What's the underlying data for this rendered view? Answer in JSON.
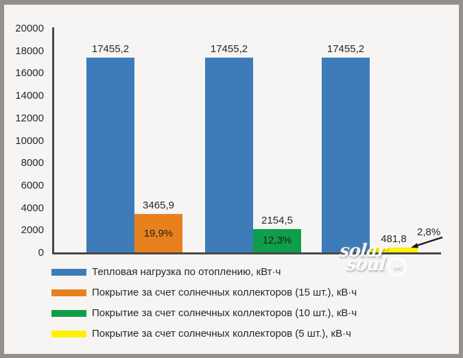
{
  "frame": {
    "background": "#f6f5f3",
    "border_color": "#94908c"
  },
  "chart_data": {
    "type": "bar",
    "title": "",
    "xlabel": "",
    "ylabel": "",
    "ylim": [
      0,
      20000
    ],
    "ytick_step": 2000,
    "yticks": [
      20000,
      18000,
      16000,
      14000,
      12000,
      10000,
      8000,
      6000,
      4000,
      2000,
      0
    ],
    "grid": false,
    "legend_position": "bottom-left",
    "axis_color": "#474747",
    "text_color": "#262626",
    "series": [
      {
        "name": "Тепловая нагрузка по отоплению, кВт·ч",
        "color": "#3d7cb8"
      },
      {
        "name": "Покрытие за счет солнечных коллекторов (15 шт.), кВ·ч",
        "color": "#e8811d"
      },
      {
        "name": "Покрытие за счет солнечных коллекторов (10 шт.), кВ·ч",
        "color": "#0f9f4b"
      },
      {
        "name": "Покрытие за счет солнечных коллекторов (5 шт.), кВ·ч",
        "color": "#fff100"
      }
    ],
    "groups": [
      {
        "bars": [
          {
            "series": 0,
            "value": 17455.2,
            "value_label": "17455,2"
          },
          {
            "series": 1,
            "value": 3465.9,
            "value_label": "3465,9",
            "percent_label": "19,9%",
            "percent_placement": "inside"
          }
        ]
      },
      {
        "bars": [
          {
            "series": 0,
            "value": 17455.2,
            "value_label": "17455,2"
          },
          {
            "series": 2,
            "value": 2154.5,
            "value_label": "2154,5",
            "percent_label": "12,3%",
            "percent_placement": "inside"
          }
        ]
      },
      {
        "bars": [
          {
            "series": 0,
            "value": 17455.2,
            "value_label": "17455,2"
          },
          {
            "series": 3,
            "value": 481.8,
            "value_label": "481,8",
            "percent_label": "2,8%",
            "percent_placement": "callout"
          }
        ]
      }
    ]
  },
  "watermark": {
    "line1": "solar",
    "line2": "soul",
    "badge": "net"
  }
}
